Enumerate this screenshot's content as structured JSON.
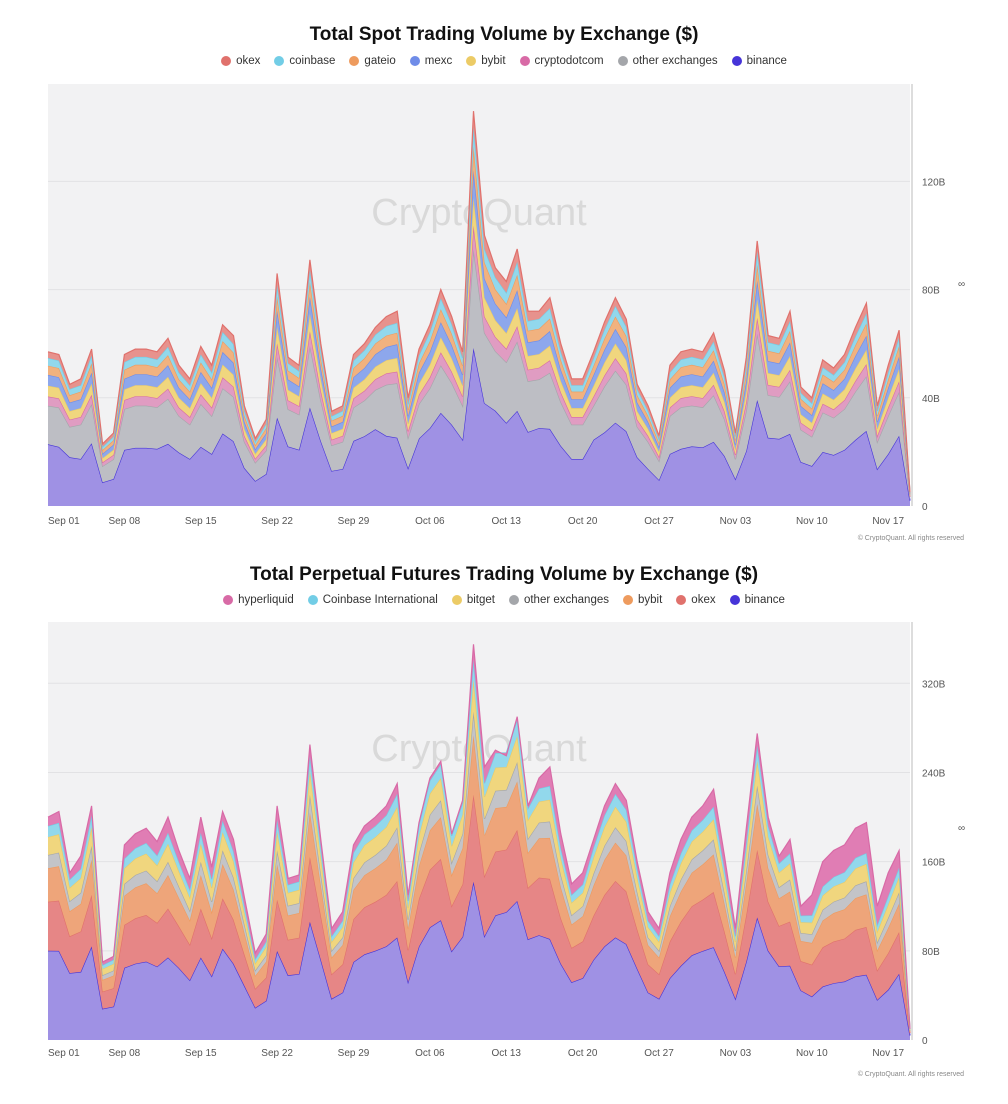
{
  "chart_data": [
    {
      "type": "area",
      "stacked": true,
      "title": "Total Spot Trading Volume by Exchange ($)",
      "watermark": "CryptoQuant",
      "copyright": "© CryptoQuant. All rights reserved",
      "y_unit_marker": "∞",
      "ylim": [
        0,
        156
      ],
      "y_ticks": [
        {
          "value": 0,
          "label": "0"
        },
        {
          "value": 40,
          "label": "40B"
        },
        {
          "value": 80,
          "label": "80B"
        },
        {
          "value": 120,
          "label": "120B"
        }
      ],
      "x_ticks": [
        {
          "index": 0,
          "label": "Sep 01"
        },
        {
          "index": 7,
          "label": "Sep 08"
        },
        {
          "index": 14,
          "label": "Sep 15"
        },
        {
          "index": 21,
          "label": "Sep 22"
        },
        {
          "index": 28,
          "label": "Sep 29"
        },
        {
          "index": 35,
          "label": "Oct 06"
        },
        {
          "index": 42,
          "label": "Oct 13"
        },
        {
          "index": 49,
          "label": "Oct 20"
        },
        {
          "index": 56,
          "label": "Oct 27"
        },
        {
          "index": 63,
          "label": "Nov 03"
        },
        {
          "index": 70,
          "label": "Nov 10"
        },
        {
          "index": 77,
          "label": "Nov 17"
        }
      ],
      "legend": [
        {
          "name": "okex",
          "color": "#e0716c"
        },
        {
          "name": "coinbase",
          "color": "#72cde6"
        },
        {
          "name": "gateio",
          "color": "#ee9b5e"
        },
        {
          "name": "mexc",
          "color": "#6f8ce8"
        },
        {
          "name": "bybit",
          "color": "#eccb66"
        },
        {
          "name": "cryptodotcom",
          "color": "#d86aa6"
        },
        {
          "name": "other exchanges",
          "color": "#a4a6aa"
        },
        {
          "name": "binance",
          "color": "#4634d8"
        }
      ],
      "stack_order_bottom_to_top": [
        "binance",
        "other exchanges",
        "cryptodotcom",
        "bybit",
        "mexc",
        "gateio",
        "coinbase",
        "okex"
      ],
      "fill_colors": {
        "binance": "#9f91e4",
        "other exchanges": "#bdbec4",
        "cryptodotcom": "#e09cc2",
        "bybit": "#f0d67e",
        "mexc": "#8da7ec",
        "gateio": "#f1b27f",
        "coinbase": "#92d8ec",
        "okex": "#e7928d"
      },
      "totals": [
        57,
        56,
        45,
        47,
        58,
        23,
        27,
        56,
        58,
        58,
        57,
        62,
        52,
        47,
        59,
        52,
        67,
        63,
        37,
        25,
        32,
        86,
        55,
        52,
        91,
        60,
        35,
        37,
        56,
        60,
        66,
        70,
        72,
        40,
        58,
        67,
        80,
        70,
        57,
        146,
        100,
        88,
        83,
        95,
        72,
        72,
        77,
        60,
        47,
        47,
        57,
        68,
        77,
        69,
        45,
        37,
        26,
        52,
        57,
        58,
        57,
        64,
        50,
        27,
        55,
        98,
        63,
        62,
        72,
        44,
        40,
        54,
        51,
        56,
        66,
        75,
        37,
        52,
        65,
        5
      ],
      "shares": {
        "binance": [
          0.4,
          0.39,
          0.4,
          0.37,
          0.4,
          0.38,
          0.37,
          0.37,
          0.37,
          0.37,
          0.37,
          0.37,
          0.38,
          0.37,
          0.37,
          0.37,
          0.4,
          0.38,
          0.38,
          0.37,
          0.37,
          0.38,
          0.4,
          0.4,
          0.4,
          0.4,
          0.37,
          0.37,
          0.43,
          0.43,
          0.43,
          0.37,
          0.35,
          0.35,
          0.43,
          0.43,
          0.43,
          0.43,
          0.43,
          0.4,
          0.38,
          0.4,
          0.37,
          0.37,
          0.38,
          0.4,
          0.37,
          0.37,
          0.37,
          0.37,
          0.43,
          0.4,
          0.4,
          0.4,
          0.4,
          0.37,
          0.37,
          0.37,
          0.37,
          0.38,
          0.38,
          0.37,
          0.37,
          0.37,
          0.37,
          0.4,
          0.4,
          0.4,
          0.37,
          0.37,
          0.37,
          0.37,
          0.37,
          0.37,
          0.37,
          0.37,
          0.37,
          0.37,
          0.4,
          0.4
        ],
        "other exchanges": [
          0.25,
          0.26,
          0.25,
          0.27,
          0.25,
          0.26,
          0.27,
          0.27,
          0.27,
          0.27,
          0.27,
          0.27,
          0.26,
          0.27,
          0.27,
          0.27,
          0.25,
          0.26,
          0.26,
          0.27,
          0.27,
          0.26,
          0.25,
          0.25,
          0.25,
          0.25,
          0.27,
          0.27,
          0.22,
          0.22,
          0.22,
          0.27,
          0.28,
          0.28,
          0.22,
          0.22,
          0.22,
          0.22,
          0.22,
          0.25,
          0.26,
          0.25,
          0.27,
          0.27,
          0.26,
          0.25,
          0.27,
          0.27,
          0.27,
          0.27,
          0.22,
          0.25,
          0.25,
          0.25,
          0.25,
          0.27,
          0.27,
          0.27,
          0.27,
          0.26,
          0.26,
          0.27,
          0.27,
          0.27,
          0.27,
          0.25,
          0.25,
          0.25,
          0.27,
          0.27,
          0.27,
          0.27,
          0.27,
          0.27,
          0.27,
          0.27,
          0.27,
          0.27,
          0.25,
          0.25
        ],
        "cryptodotcom": 0.06,
        "bybit": 0.07,
        "mexc": 0.07,
        "gateio": 0.06,
        "coinbase": 0.05,
        "okex": 0.04
      }
    },
    {
      "type": "area",
      "stacked": true,
      "title": "Total Perpetual Futures Trading Volume by Exchange ($)",
      "watermark": "CryptoQuant",
      "copyright": "© CryptoQuant. All rights reserved",
      "y_unit_marker": "∞",
      "ylim": [
        0,
        375
      ],
      "y_ticks": [
        {
          "value": 0,
          "label": "0"
        },
        {
          "value": 80,
          "label": "80B"
        },
        {
          "value": 160,
          "label": "160B"
        },
        {
          "value": 240,
          "label": "240B"
        },
        {
          "value": 320,
          "label": "320B"
        }
      ],
      "x_ticks": [
        {
          "index": 0,
          "label": "Sep 01"
        },
        {
          "index": 7,
          "label": "Sep 08"
        },
        {
          "index": 14,
          "label": "Sep 15"
        },
        {
          "index": 21,
          "label": "Sep 22"
        },
        {
          "index": 28,
          "label": "Sep 29"
        },
        {
          "index": 35,
          "label": "Oct 06"
        },
        {
          "index": 42,
          "label": "Oct 13"
        },
        {
          "index": 49,
          "label": "Oct 20"
        },
        {
          "index": 56,
          "label": "Oct 27"
        },
        {
          "index": 63,
          "label": "Nov 03"
        },
        {
          "index": 70,
          "label": "Nov 10"
        },
        {
          "index": 77,
          "label": "Nov 17"
        }
      ],
      "legend": [
        {
          "name": "hyperliquid",
          "color": "#d86aa6"
        },
        {
          "name": "Coinbase International",
          "color": "#72cde6"
        },
        {
          "name": "bitget",
          "color": "#eccb66"
        },
        {
          "name": "other exchanges",
          "color": "#a4a6aa"
        },
        {
          "name": "bybit",
          "color": "#ee9b5e"
        },
        {
          "name": "okex",
          "color": "#e0716c"
        },
        {
          "name": "binance",
          "color": "#4634d8"
        }
      ],
      "stack_order_bottom_to_top": [
        "binance",
        "okex",
        "bybit",
        "other exchanges",
        "bitget",
        "Coinbase International",
        "hyperliquid"
      ],
      "fill_colors": {
        "binance": "#9f91e4",
        "okex": "#e68686",
        "bybit": "#eea57a",
        "other exchanges": "#c3c4c8",
        "bitget": "#f0d67e",
        "Coinbase International": "#92d8ec",
        "hyperliquid": "#e07db4"
      },
      "totals": [
        200,
        205,
        150,
        165,
        210,
        70,
        75,
        175,
        185,
        190,
        178,
        200,
        170,
        145,
        200,
        155,
        205,
        180,
        128,
        78,
        95,
        210,
        145,
        148,
        265,
        180,
        100,
        115,
        175,
        192,
        200,
        210,
        230,
        130,
        195,
        235,
        250,
        185,
        215,
        355,
        245,
        260,
        255,
        290,
        210,
        235,
        245,
        185,
        140,
        150,
        180,
        210,
        230,
        215,
        160,
        115,
        100,
        150,
        180,
        200,
        210,
        225,
        165,
        100,
        190,
        275,
        200,
        165,
        180,
        120,
        130,
        160,
        170,
        175,
        190,
        195,
        120,
        150,
        170,
        10
      ],
      "shares": {
        "binance": [
          0.4,
          0.39,
          0.4,
          0.37,
          0.4,
          0.4,
          0.4,
          0.37,
          0.37,
          0.37,
          0.37,
          0.37,
          0.38,
          0.37,
          0.37,
          0.37,
          0.4,
          0.38,
          0.38,
          0.37,
          0.37,
          0.38,
          0.4,
          0.4,
          0.4,
          0.4,
          0.37,
          0.37,
          0.4,
          0.4,
          0.4,
          0.4,
          0.4,
          0.4,
          0.43,
          0.43,
          0.43,
          0.43,
          0.43,
          0.4,
          0.38,
          0.43,
          0.45,
          0.43,
          0.43,
          0.4,
          0.37,
          0.37,
          0.37,
          0.37,
          0.4,
          0.4,
          0.4,
          0.4,
          0.4,
          0.37,
          0.37,
          0.37,
          0.37,
          0.38,
          0.38,
          0.37,
          0.37,
          0.37,
          0.37,
          0.4,
          0.4,
          0.4,
          0.37,
          0.37,
          0.3,
          0.3,
          0.3,
          0.3,
          0.3,
          0.3,
          0.3,
          0.3,
          0.35,
          0.4
        ],
        "okex": 0.22,
        "bybit": 0.15,
        "other exchanges": 0.06,
        "bitget": 0.08,
        "Coinbase International": 0.05,
        "hyperliquid": 0.04
      }
    }
  ]
}
